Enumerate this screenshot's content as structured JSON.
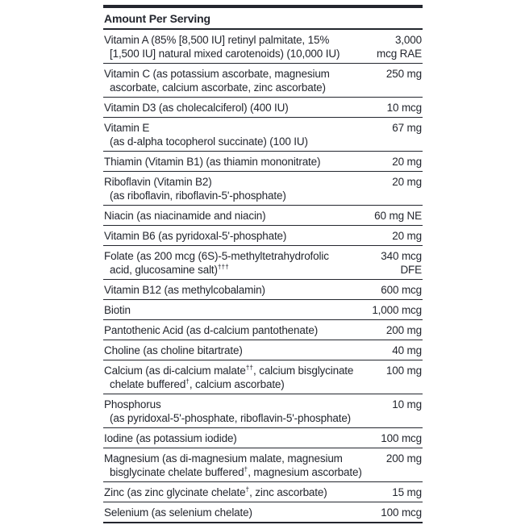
{
  "colors": {
    "ink": "#23262e",
    "background": "#ffffff"
  },
  "header": {
    "title": "Amount Per Serving"
  },
  "rows": [
    {
      "line1": "Vitamin A (85% [8,500 IU] retinyl palmitate, 15%",
      "line2": "[1,500 IU] natural mixed carotenoids) (10,000 IU)",
      "amount1": "3,000",
      "amount2": "mcg RAE"
    },
    {
      "line1": "Vitamin C (as potassium ascorbate, magnesium",
      "line2": "ascorbate, calcium ascorbate, zinc ascorbate)",
      "amount1": "250 mg",
      "amount2": ""
    },
    {
      "line1": "Vitamin D3 (as cholecalciferol) (400 IU)",
      "line2": "",
      "amount1": "10 mcg",
      "amount2": ""
    },
    {
      "line1": "Vitamin E",
      "line2": "(as d-alpha tocopherol succinate) (100 IU)",
      "amount1": "67 mg",
      "amount2": ""
    },
    {
      "line1": "Thiamin (Vitamin B1) (as thiamin mononitrate)",
      "line2": "",
      "amount1": "20 mg",
      "amount2": ""
    },
    {
      "line1": "Riboflavin (Vitamin B2)",
      "line2": "(as riboflavin, riboflavin-5'-phosphate)",
      "amount1": "20 mg",
      "amount2": ""
    },
    {
      "line1": "Niacin (as niacinamide and niacin)",
      "line2": "",
      "amount1": "60 mg NE",
      "amount2": ""
    },
    {
      "line1": "Vitamin B6 (as pyridoxal-5'-phosphate)",
      "line2": "",
      "amount1": "20 mg",
      "amount2": ""
    },
    {
      "line1": "Folate (as 200 mcg (6S)-5-methyltetrahydrofolic",
      "line2": "acid, glucosamine salt)†††",
      "amount1": "340 mcg",
      "amount2": "DFE"
    },
    {
      "line1": "Vitamin B12 (as methylcobalamin)",
      "line2": "",
      "amount1": "600 mcg",
      "amount2": ""
    },
    {
      "line1": "Biotin",
      "line2": "",
      "amount1": "1,000 mcg",
      "amount2": ""
    },
    {
      "line1": "Pantothenic Acid (as d-calcium pantothenate)",
      "line2": "",
      "amount1": "200 mg",
      "amount2": ""
    },
    {
      "line1": "Choline (as choline bitartrate)",
      "line2": "",
      "amount1": "40 mg",
      "amount2": ""
    },
    {
      "line1": "Calcium (as di-calcium malate††, calcium bisglycinate",
      "line2": "chelate buffered†, calcium ascorbate)",
      "amount1": "100 mg",
      "amount2": ""
    },
    {
      "line1": "Phosphorus",
      "line2": "(as pyridoxal-5'-phosphate, riboflavin-5'-phosphate)",
      "amount1": "10 mg",
      "amount2": ""
    },
    {
      "line1": "Iodine (as potassium iodide)",
      "line2": "",
      "amount1": "100 mcg",
      "amount2": ""
    },
    {
      "line1": "Magnesium (as di-magnesium malate, magnesium",
      "line2": "bisglycinate chelate buffered†, magnesium ascorbate)",
      "amount1": "200 mg",
      "amount2": ""
    },
    {
      "line1": "Zinc (as zinc glycinate chelate†, zinc ascorbate)",
      "line2": "",
      "amount1": "15 mg",
      "amount2": ""
    },
    {
      "line1": "Selenium (as selenium chelate)",
      "line2": "",
      "amount1": "100 mcg",
      "amount2": ""
    }
  ]
}
